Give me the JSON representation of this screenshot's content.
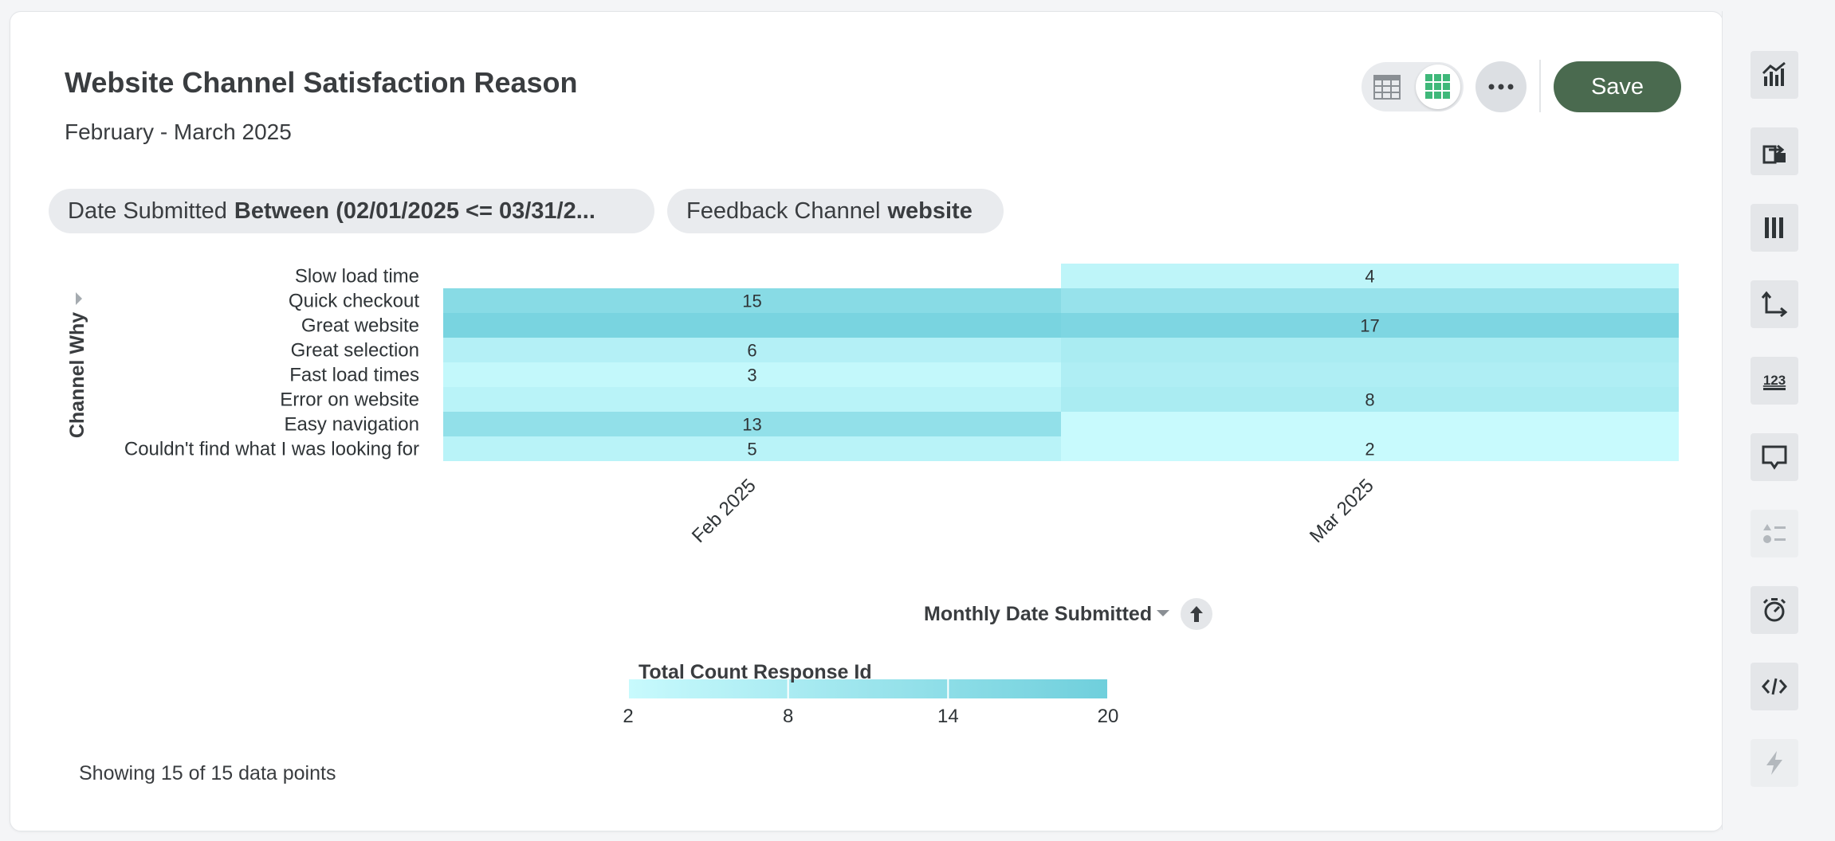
{
  "header": {
    "title": "Website Channel Satisfaction Reason",
    "subtitle": "February - March 2025",
    "save_label": "Save"
  },
  "filters": [
    {
      "field": "Date Submitted",
      "value": "Between (02/01/2025 <= 03/31/2..."
    },
    {
      "field": "Feedback Channel",
      "value": "website"
    }
  ],
  "chart_data": {
    "type": "heatmap",
    "title": "Website Channel Satisfaction Reason",
    "subtitle": "February - March 2025",
    "xlabel": "Monthly Date Submitted",
    "ylabel": "Channel Why",
    "x": [
      "Feb 2025",
      "Mar 2025"
    ],
    "y": [
      "Slow load time",
      "Quick checkout",
      "Great website",
      "Great selection",
      "Fast load times",
      "Error on website",
      "Easy navigation",
      "Couldn't find what I was looking for"
    ],
    "cells": [
      {
        "y": "Slow load time",
        "x": "Mar 2025",
        "value": 4
      },
      {
        "y": "Quick checkout",
        "x": "Feb 2025",
        "value": 15
      },
      {
        "y": "Quick checkout",
        "x": "Mar 2025",
        "value": 12
      },
      {
        "y": "Great website",
        "x": "Feb 2025",
        "value": 18
      },
      {
        "y": "Great website",
        "x": "Mar 2025",
        "value": 17
      },
      {
        "y": "Great selection",
        "x": "Feb 2025",
        "value": 6
      },
      {
        "y": "Great selection",
        "x": "Mar 2025",
        "value": 8
      },
      {
        "y": "Fast load times",
        "x": "Feb 2025",
        "value": 3
      },
      {
        "y": "Fast load times",
        "x": "Mar 2025",
        "value": 7
      },
      {
        "y": "Error on website",
        "x": "Feb 2025",
        "value": 5
      },
      {
        "y": "Error on website",
        "x": "Mar 2025",
        "value": 8
      },
      {
        "y": "Easy navigation",
        "x": "Feb 2025",
        "value": 13
      },
      {
        "y": "Easy navigation",
        "x": "Mar 2025",
        "value": 2
      },
      {
        "y": "Couldn't find what I was looking for",
        "x": "Feb 2025",
        "value": 5
      },
      {
        "y": "Couldn't find what I was looking for",
        "x": "Mar 2025",
        "value": 2
      }
    ],
    "visible_labels": [
      {
        "y": "Slow load time",
        "x": "Mar 2025",
        "text": "4"
      },
      {
        "y": "Quick checkout",
        "x": "Feb 2025",
        "text": "15"
      },
      {
        "y": "Great website",
        "x": "Mar 2025",
        "text": "17"
      },
      {
        "y": "Great selection",
        "x": "Feb 2025",
        "text": "6"
      },
      {
        "y": "Fast load times",
        "x": "Feb 2025",
        "text": "3"
      },
      {
        "y": "Error on website",
        "x": "Mar 2025",
        "text": "8"
      },
      {
        "y": "Easy navigation",
        "x": "Feb 2025",
        "text": "13"
      },
      {
        "y": "Couldn't find what I was looking for",
        "x": "Feb 2025",
        "text": "5"
      },
      {
        "y": "Couldn't find what I was looking for",
        "x": "Mar 2025",
        "text": "2"
      }
    ],
    "color_scale": {
      "title": "Total Count Response Id",
      "min": 2,
      "max": 20,
      "ticks": [
        2,
        8,
        14,
        20
      ],
      "low_color": "#c8fafd",
      "high_color": "#6fcfdc"
    },
    "grid": false,
    "legend_position": "bottom"
  },
  "footer": {
    "points_label": "Showing 15 of 15 data points"
  },
  "colors": {
    "accent": "#4a6a4f",
    "grid_icon": "#3fb87a"
  },
  "rail_icons": [
    "chart-settings-icon",
    "export-icon",
    "columns-icon",
    "axes-icon",
    "number-format-icon",
    "tooltip-icon",
    "legend-icon",
    "timer-icon",
    "code-icon",
    "lightning-icon"
  ]
}
